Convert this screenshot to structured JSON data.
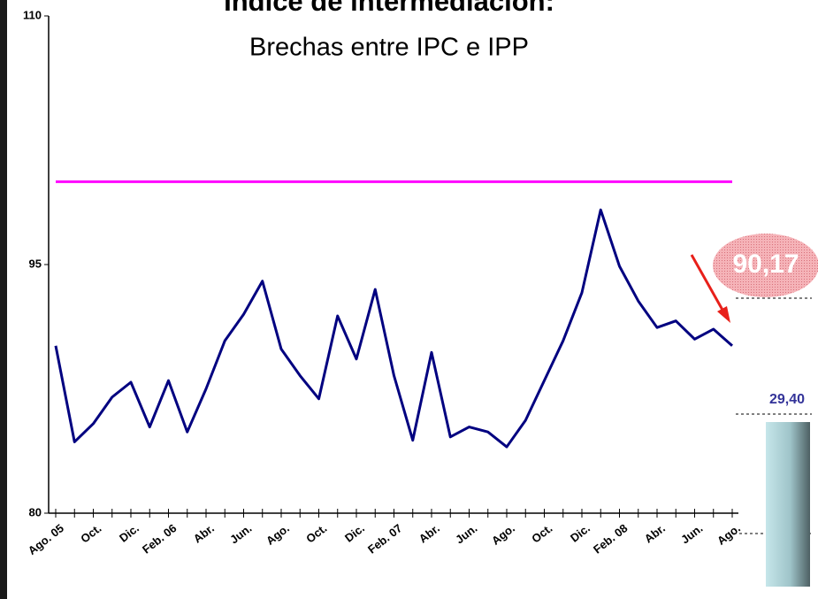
{
  "chart_data": {
    "type": "line",
    "title": "Índice de intermediación:",
    "subtitle": "Brechas entre IPC e IPP",
    "categories": [
      "Ago. 05",
      null,
      "Oct.",
      null,
      "Dic.",
      null,
      "Feb. 06",
      null,
      "Abr.",
      null,
      "Jun.",
      null,
      "Ago.",
      null,
      "Oct.",
      null,
      "Dic.",
      null,
      "Feb. 07",
      null,
      "Abr.",
      null,
      "Jun.",
      null,
      "Ago.",
      null,
      "Oct.",
      null,
      "Dic.",
      null,
      "Feb. 08",
      null,
      "Abr.",
      null,
      "Jun.",
      null,
      "Ago."
    ],
    "series": [
      {
        "color": "#000080",
        "values": [
          90.1,
          84.3,
          85.4,
          87.0,
          87.9,
          85.2,
          88.0,
          84.9,
          87.5,
          90.4,
          92.0,
          94.0,
          89.9,
          88.3,
          86.9,
          91.9,
          89.3,
          93.5,
          88.3,
          84.4,
          89.7,
          84.6,
          85.2,
          84.9,
          84.0,
          85.6,
          88.0,
          90.4,
          93.3,
          98.3,
          94.9,
          92.8,
          91.2,
          91.6,
          90.5,
          91.1,
          90.1
        ]
      }
    ],
    "reference_lines": [
      {
        "value": 100,
        "color": "#ff00ff"
      }
    ],
    "ylim": [
      80,
      110
    ],
    "yticks": [
      80,
      95,
      110
    ],
    "annotations": [
      "90,17",
      "29,40"
    ]
  }
}
